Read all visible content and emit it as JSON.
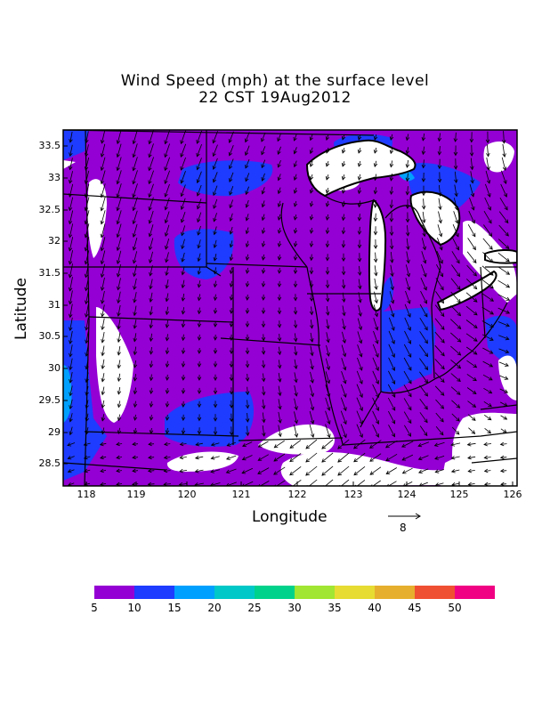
{
  "title_line1": "Wind Speed (mph) at the surface level",
  "title_line2": "22 CST 19Aug2012",
  "axes": {
    "xlabel": "Longitude",
    "ylabel": "Latitude",
    "xticks": [
      "118",
      "119",
      "120",
      "121",
      "122",
      "123",
      "124",
      "125",
      "126"
    ],
    "yticks": [
      "33.5",
      "33",
      "32.5",
      "32",
      "31.5",
      "31",
      "30.5",
      "30",
      "29.5",
      "29",
      "28.5"
    ]
  },
  "reference_vector": {
    "value": "8"
  },
  "colorbar": {
    "labels": [
      "5",
      "10",
      "15",
      "20",
      "25",
      "30",
      "35",
      "40",
      "45",
      "50"
    ],
    "colors": [
      "#9400d3",
      "#1e3cff",
      "#00a0ff",
      "#00c8c8",
      "#00d28c",
      "#a0e632",
      "#e6dc32",
      "#e6af2d",
      "#f05032",
      "#f00082"
    ]
  },
  "map_colors": {
    "background": "#9400d3",
    "speed_10_15": "#1e3cff",
    "speed_15_20": "#00a0ff",
    "calm": "#ffffff",
    "lake": "#ffffff"
  }
}
